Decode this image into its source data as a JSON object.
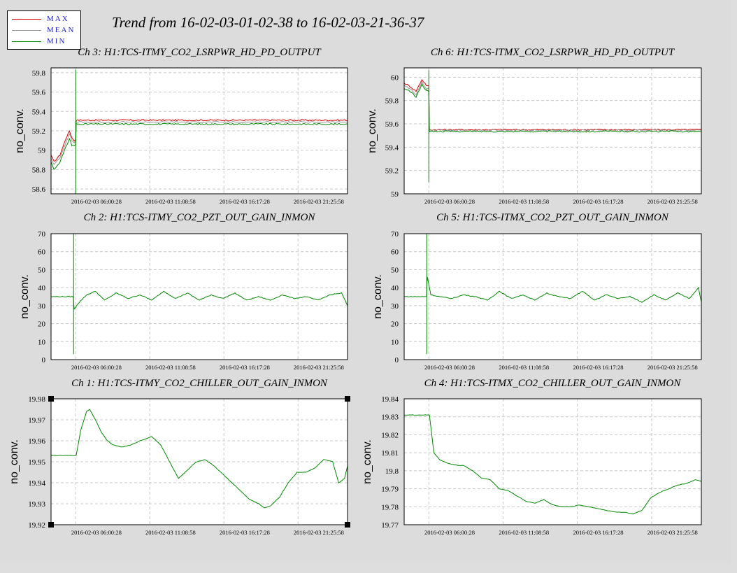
{
  "title": "Trend from 16-02-03-01-02-38 to 16-02-03-21-36-37",
  "legend": [
    {
      "label": "MAX",
      "color": "#dd0000"
    },
    {
      "label": "MEAN",
      "color": "#999999"
    },
    {
      "label": "MIN",
      "color": "#008800"
    }
  ],
  "chart_data": [
    {
      "id": "ch3",
      "type": "line",
      "title": "Ch 3: H1:TCS-ITMY_CO2_LSRPWR_HD_PD_OUTPUT",
      "ylabel": "no_conv.",
      "ylim": [
        58.55,
        59.85
      ],
      "yticks": [
        58.6,
        58.8,
        59,
        59.2,
        59.4,
        59.6,
        59.8
      ],
      "xtick_labels": [
        "2016-02-03 06:00:28",
        "2016-02-03 11:08:58",
        "2016-02-03 16:17:28",
        "2016-02-03 21:25:58"
      ],
      "spike": {
        "x": 0.083,
        "min": 58.53,
        "max": 59.83
      },
      "series": [
        {
          "name": "MAX",
          "color": "#dd0000",
          "x": [
            0,
            0.01,
            0.03,
            0.05,
            0.062,
            0.07,
            0.078,
            0.083,
            0.085,
            1.0
          ],
          "values": [
            58.95,
            58.88,
            58.95,
            59.12,
            59.2,
            59.13,
            59.1,
            59.1,
            59.31,
            59.31
          ]
        },
        {
          "name": "MEAN",
          "color": "#999999",
          "x": [
            0,
            0.01,
            0.03,
            0.05,
            0.062,
            0.07,
            0.078,
            0.083,
            0.085,
            1.0
          ],
          "values": [
            58.92,
            58.85,
            58.92,
            59.08,
            59.17,
            59.1,
            59.08,
            59.08,
            59.29,
            59.29
          ]
        },
        {
          "name": "MIN",
          "color": "#008800",
          "x": [
            0,
            0.01,
            0.03,
            0.05,
            0.062,
            0.07,
            0.078,
            0.083,
            0.085,
            1.0
          ],
          "values": [
            58.88,
            58.8,
            58.88,
            59.03,
            59.12,
            59.05,
            59.05,
            59.05,
            59.27,
            59.27
          ]
        }
      ]
    },
    {
      "id": "ch6",
      "type": "line",
      "title": "Ch 6: H1:TCS-ITMX_CO2_LSRPWR_HD_PD_OUTPUT",
      "ylabel": "no_conv.",
      "ylim": [
        59.0,
        60.08
      ],
      "yticks": [
        59,
        59.2,
        59.4,
        59.6,
        59.8,
        60
      ],
      "xtick_labels": [
        "2016-02-03 06:00:28",
        "2016-02-03 11:08:58",
        "2016-02-03 16:17:28",
        "2016-02-03 21:25:58"
      ],
      "spike": {
        "x": 0.083,
        "min": 59.1,
        "max": 60.06
      },
      "series": [
        {
          "name": "MAX",
          "color": "#dd0000",
          "x": [
            0,
            0.02,
            0.04,
            0.06,
            0.075,
            0.083,
            0.085,
            1.0
          ],
          "values": [
            59.95,
            59.92,
            59.88,
            59.98,
            59.93,
            59.92,
            59.55,
            59.55
          ]
        },
        {
          "name": "MEAN",
          "color": "#999999",
          "x": [
            0,
            0.02,
            0.04,
            0.06,
            0.075,
            0.083,
            0.085,
            1.0
          ],
          "values": [
            59.93,
            59.9,
            59.85,
            59.96,
            59.9,
            59.9,
            59.545,
            59.545
          ]
        },
        {
          "name": "MIN",
          "color": "#008800",
          "x": [
            0,
            0.02,
            0.04,
            0.06,
            0.075,
            0.083,
            0.085,
            1.0
          ],
          "values": [
            59.9,
            59.88,
            59.83,
            59.94,
            59.88,
            59.88,
            59.535,
            59.535
          ]
        }
      ]
    },
    {
      "id": "ch2",
      "type": "line",
      "title": "Ch 2: H1:TCS-ITMY_CO2_PZT_OUT_GAIN_INMON",
      "ylabel": "no_conv.",
      "ylim": [
        0,
        70
      ],
      "yticks": [
        0,
        10,
        20,
        30,
        40,
        50,
        60,
        70
      ],
      "xtick_labels": [
        "2016-02-03 06:00:28",
        "2016-02-03 11:08:58",
        "2016-02-03 16:17:28",
        "2016-02-03 21:25:58"
      ],
      "spike": {
        "x": 0.076,
        "min": 3,
        "max": 70
      },
      "series": [
        {
          "name": "MIN",
          "color": "#008800",
          "x": [
            0,
            0.075,
            0.078,
            0.09,
            0.12,
            0.15,
            0.18,
            0.22,
            0.26,
            0.3,
            0.34,
            0.38,
            0.42,
            0.46,
            0.5,
            0.54,
            0.58,
            0.62,
            0.66,
            0.7,
            0.74,
            0.78,
            0.82,
            0.86,
            0.9,
            0.94,
            0.98,
            1.0
          ],
          "values": [
            35,
            35,
            28,
            31,
            36,
            38,
            33,
            37,
            34,
            36,
            33,
            38,
            34,
            37,
            33,
            36,
            34,
            37,
            33,
            35,
            33,
            36,
            34,
            35,
            33,
            36,
            37,
            30
          ]
        }
      ]
    },
    {
      "id": "ch5",
      "type": "line",
      "title": "Ch 5: H1:TCS-ITMX_CO2_PZT_OUT_GAIN_INMON",
      "ylabel": "no_conv.",
      "ylim": [
        0,
        70
      ],
      "yticks": [
        0,
        10,
        20,
        30,
        40,
        50,
        60,
        70
      ],
      "xtick_labels": [
        "2016-02-03 06:00:28",
        "2016-02-03 11:08:58",
        "2016-02-03 16:17:28",
        "2016-02-03 21:25:58"
      ],
      "spike": {
        "x": 0.076,
        "min": 3,
        "max": 70
      },
      "series": [
        {
          "name": "MIN",
          "color": "#008800",
          "x": [
            0,
            0.075,
            0.078,
            0.09,
            0.12,
            0.16,
            0.2,
            0.24,
            0.28,
            0.32,
            0.36,
            0.4,
            0.44,
            0.48,
            0.52,
            0.56,
            0.6,
            0.64,
            0.68,
            0.72,
            0.76,
            0.8,
            0.84,
            0.88,
            0.92,
            0.96,
            0.99,
            1.0
          ],
          "values": [
            35,
            35,
            46,
            36,
            35,
            34,
            36,
            35,
            33,
            38,
            34,
            36,
            33,
            37,
            35,
            34,
            38,
            33,
            36,
            34,
            35,
            32,
            36,
            33,
            37,
            34,
            40,
            32
          ]
        }
      ]
    },
    {
      "id": "ch1",
      "type": "line",
      "title": "Ch 1: H1:TCS-ITMY_CO2_CHILLER_OUT_GAIN_INMON",
      "ylabel": "no_conv.",
      "ylim": [
        19.92,
        19.98
      ],
      "yticks": [
        19.92,
        19.93,
        19.94,
        19.95,
        19.96,
        19.97,
        19.98
      ],
      "xtick_labels": [
        "2016-02-03 06:00:28",
        "2016-02-03 11:08:58",
        "2016-02-03 16:17:28",
        "2016-02-03 21:25:58"
      ],
      "series": [
        {
          "name": "MIN",
          "color": "#008800",
          "x": [
            0,
            0.085,
            0.1,
            0.12,
            0.13,
            0.15,
            0.17,
            0.19,
            0.21,
            0.24,
            0.27,
            0.3,
            0.34,
            0.37,
            0.4,
            0.43,
            0.46,
            0.49,
            0.52,
            0.55,
            0.58,
            0.61,
            0.64,
            0.67,
            0.7,
            0.72,
            0.74,
            0.77,
            0.8,
            0.83,
            0.86,
            0.89,
            0.92,
            0.95,
            0.97,
            0.99,
            1.0
          ],
          "values": [
            19.953,
            19.953,
            19.965,
            19.974,
            19.975,
            19.97,
            19.964,
            19.96,
            19.958,
            19.957,
            19.958,
            19.96,
            19.962,
            19.958,
            19.95,
            19.942,
            19.946,
            19.95,
            19.951,
            19.948,
            19.944,
            19.94,
            19.936,
            19.932,
            19.93,
            19.928,
            19.929,
            19.933,
            19.94,
            19.945,
            19.945,
            19.947,
            19.951,
            19.95,
            19.94,
            19.942,
            19.948
          ]
        }
      ]
    },
    {
      "id": "ch4",
      "type": "line",
      "title": "Ch 4: H1:TCS-ITMX_CO2_CHILLER_OUT_GAIN_INMON",
      "ylabel": "no_conv.",
      "ylim": [
        19.77,
        19.84
      ],
      "yticks": [
        19.77,
        19.78,
        19.79,
        19.8,
        19.81,
        19.82,
        19.83,
        19.84
      ],
      "xtick_labels": [
        "2016-02-03 06:00:28",
        "2016-02-03 11:08:58",
        "2016-02-03 16:17:28",
        "2016-02-03 21:25:58"
      ],
      "series": [
        {
          "name": "MIN",
          "color": "#008800",
          "x": [
            0,
            0.085,
            0.1,
            0.12,
            0.15,
            0.18,
            0.2,
            0.23,
            0.26,
            0.29,
            0.32,
            0.35,
            0.38,
            0.41,
            0.44,
            0.47,
            0.5,
            0.53,
            0.56,
            0.59,
            0.62,
            0.65,
            0.68,
            0.71,
            0.74,
            0.77,
            0.8,
            0.83,
            0.86,
            0.89,
            0.92,
            0.95,
            0.98,
            1.0
          ],
          "values": [
            19.831,
            19.831,
            19.81,
            19.806,
            19.804,
            19.803,
            19.803,
            19.8,
            19.796,
            19.795,
            19.79,
            19.789,
            19.786,
            19.783,
            19.782,
            19.784,
            19.781,
            19.78,
            19.78,
            19.781,
            19.78,
            19.779,
            19.778,
            19.777,
            19.777,
            19.776,
            19.778,
            19.785,
            19.788,
            19.79,
            19.792,
            19.793,
            19.795,
            19.794
          ]
        }
      ]
    }
  ]
}
